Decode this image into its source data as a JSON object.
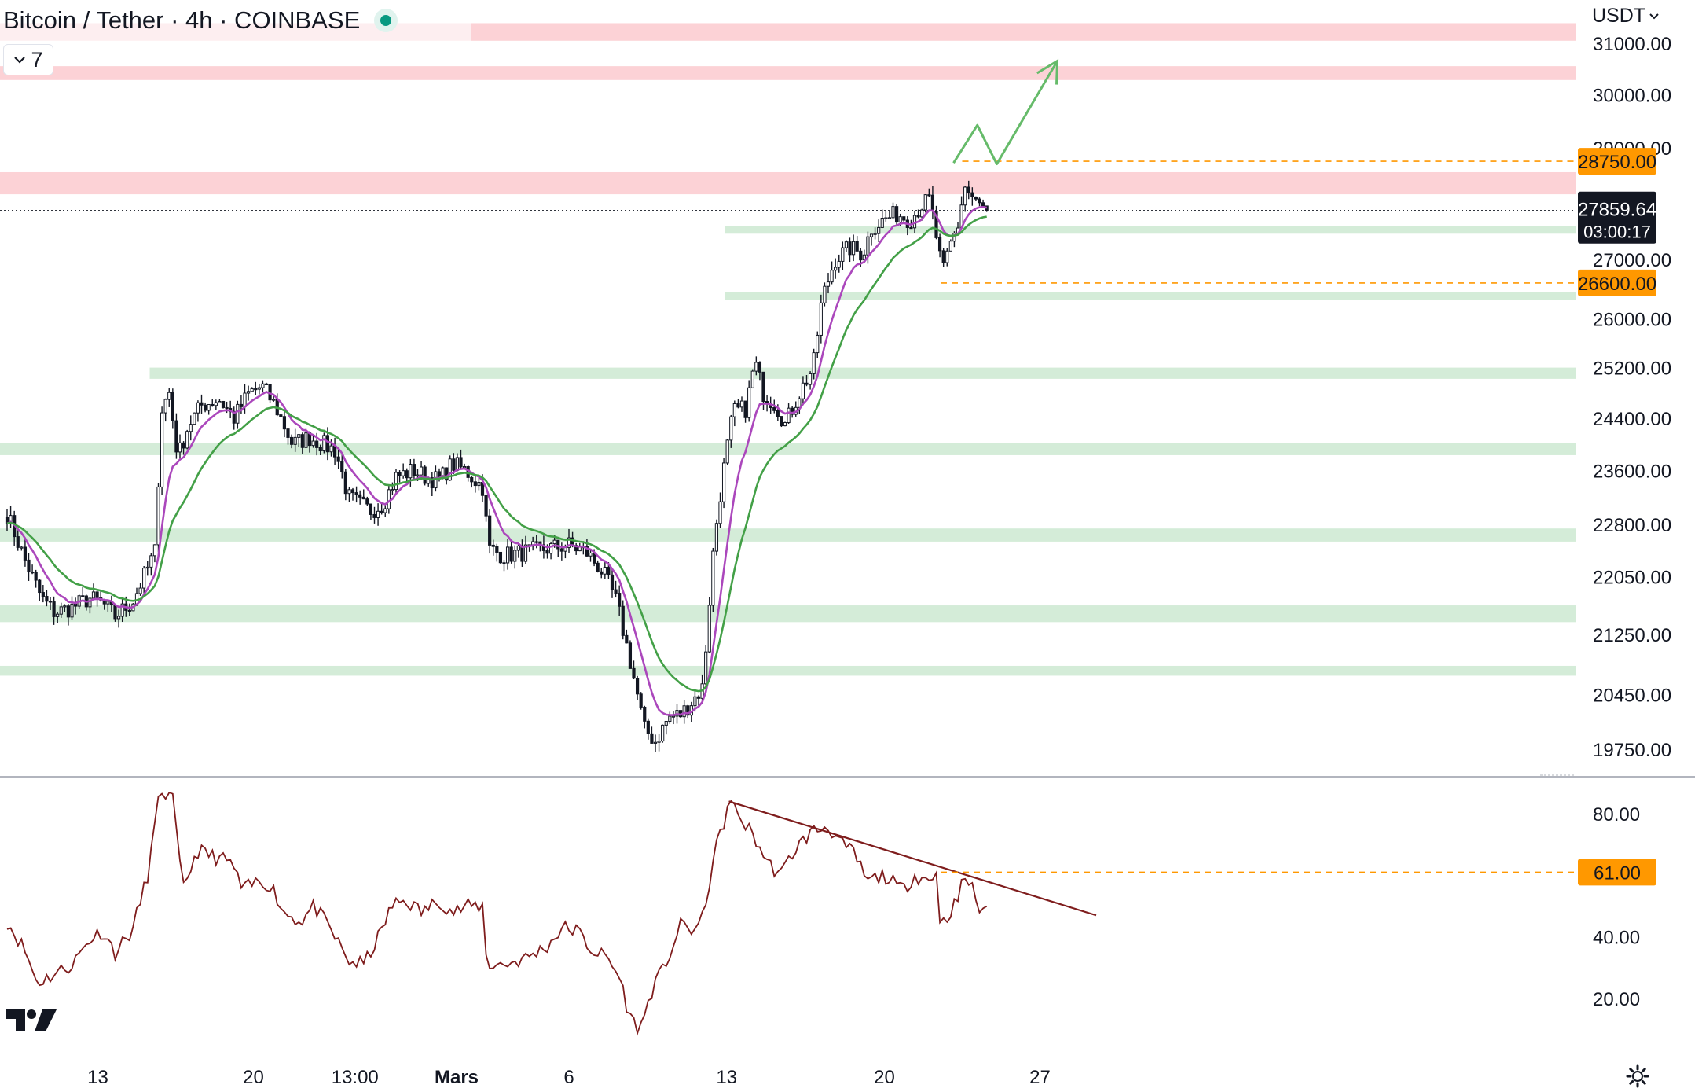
{
  "header": {
    "title": "Bitcoin / Tether · 4h · COINBASE",
    "indicator_count": "7",
    "currency": "USDT",
    "currency_icon": "chevron-down-icon",
    "toggle_icon": "chevron-down-icon",
    "status_color": "#089981"
  },
  "colors": {
    "up": "#089981",
    "candle": "#131722",
    "ema_fast": "#ab47bc",
    "ema_slow": "#43a047",
    "resistance_zone": "#fcd2d6",
    "support_zone": "#d4ecd8",
    "rsi": "#7f1d1d",
    "label_orange": "#ff9800",
    "price_label": "#131722"
  },
  "chart_data": [
    {
      "type": "candlestick",
      "title": "",
      "y_axis": {
        "ticks": [
          "31000.00",
          "30000.00",
          "29000.00",
          "27000.00",
          "26000.00",
          "25200.00",
          "24400.00",
          "23600.00",
          "22800.00",
          "22050.00",
          "21250.00",
          "20450.00",
          "19750.00"
        ],
        "tick_values": [
          31000,
          30000,
          29000,
          27000,
          26000,
          25200,
          24400,
          23600,
          22800,
          22050,
          21250,
          20450,
          19750
        ],
        "scale": "log",
        "range": [
          19450,
          31300
        ],
        "side": "right"
      },
      "x_axis": {
        "ticks": [
          "13",
          "20",
          "13:00",
          "Mars",
          "6",
          "13",
          "20",
          "27"
        ],
        "bold_tick": "Mars"
      },
      "current_price": {
        "value": 27859.64,
        "label": "27859.64",
        "countdown": "03:00:17"
      },
      "price_labels": [
        {
          "value": 28750,
          "label": "28750.00",
          "color": "#ff9800"
        },
        {
          "value": 26600,
          "label": "26600.00",
          "color": "#ff9800"
        }
      ],
      "resistance_zones": [
        {
          "low": 31050,
          "high": 31400
        },
        {
          "low": 30280,
          "high": 30550
        },
        {
          "low": 28150,
          "high": 28550
        }
      ],
      "support_zones": [
        {
          "low": 27450,
          "high": 27580,
          "from_day": 33.2
        },
        {
          "low": 26320,
          "high": 26450,
          "from_day": 33.2
        },
        {
          "low": 25020,
          "high": 25200,
          "from_day": 6.6
        },
        {
          "low": 23830,
          "high": 24010
        },
        {
          "low": 22550,
          "high": 22740
        },
        {
          "low": 21420,
          "high": 21650
        },
        {
          "low": 20700,
          "high": 20830
        }
      ],
      "projection_path": [
        {
          "day": 43.8,
          "price": 28720
        },
        {
          "day": 44.9,
          "price": 29420
        },
        {
          "day": 45.8,
          "price": 28700
        },
        {
          "day": 48.6,
          "price": 30650
        }
      ],
      "candles": {
        "start_day": 0,
        "bars_per_day": 6,
        "last_close": 27859.64,
        "path": [
          [
            0,
            22950
          ],
          [
            0.8,
            22300
          ],
          [
            1.6,
            21750
          ],
          [
            2.2,
            21550
          ],
          [
            3.0,
            21620
          ],
          [
            3.8,
            21750
          ],
          [
            4.4,
            21680
          ],
          [
            5.0,
            21500
          ],
          [
            5.8,
            21700
          ],
          [
            6.4,
            22100
          ],
          [
            6.9,
            22450
          ],
          [
            7.1,
            24500
          ],
          [
            7.5,
            24800
          ],
          [
            7.9,
            23800
          ],
          [
            8.4,
            24300
          ],
          [
            9.0,
            24600
          ],
          [
            9.8,
            24700
          ],
          [
            10.5,
            24400
          ],
          [
            11.2,
            24800
          ],
          [
            11.8,
            24900
          ],
          [
            12.4,
            24600
          ],
          [
            13.2,
            24000
          ],
          [
            14.0,
            24100
          ],
          [
            14.6,
            24000
          ],
          [
            15.2,
            23900
          ],
          [
            15.8,
            23200
          ],
          [
            16.8,
            23000
          ],
          [
            17.4,
            23100
          ],
          [
            18.0,
            23500
          ],
          [
            18.8,
            23600
          ],
          [
            19.4,
            23500
          ],
          [
            20.0,
            23450
          ],
          [
            20.6,
            23700
          ],
          [
            21.2,
            23600
          ],
          [
            22.0,
            23350
          ],
          [
            22.3,
            22450
          ],
          [
            23.0,
            22350
          ],
          [
            24.0,
            22400
          ],
          [
            25.0,
            22450
          ],
          [
            26.0,
            22500
          ],
          [
            26.8,
            22400
          ],
          [
            27.6,
            22100
          ],
          [
            28.2,
            21700
          ],
          [
            28.9,
            20800
          ],
          [
            29.5,
            20000
          ],
          [
            30.0,
            19850
          ],
          [
            30.6,
            20150
          ],
          [
            31.2,
            20200
          ],
          [
            31.8,
            20400
          ],
          [
            32.2,
            20550
          ],
          [
            32.7,
            22500
          ],
          [
            33.1,
            23500
          ],
          [
            33.6,
            24500
          ],
          [
            34.2,
            24550
          ],
          [
            34.6,
            25300
          ],
          [
            35.0,
            24800
          ],
          [
            35.6,
            24600
          ],
          [
            36.0,
            24300
          ],
          [
            36.6,
            24750
          ],
          [
            37.3,
            25200
          ],
          [
            37.7,
            26300
          ],
          [
            38.3,
            27000
          ],
          [
            39.0,
            27200
          ],
          [
            39.6,
            27100
          ],
          [
            40.0,
            27550
          ],
          [
            40.6,
            27700
          ],
          [
            41.2,
            27800
          ],
          [
            41.8,
            27700
          ],
          [
            42.3,
            27950
          ],
          [
            42.7,
            28050
          ],
          [
            43.0,
            27400
          ],
          [
            43.3,
            26750
          ],
          [
            43.6,
            27200
          ],
          [
            44.0,
            27600
          ],
          [
            44.3,
            28300
          ],
          [
            44.8,
            28000
          ],
          [
            45.3,
            27859.64
          ]
        ]
      },
      "ema_fast_length": 9,
      "ema_slow_length": 21
    },
    {
      "type": "line",
      "title": "",
      "y_axis": {
        "ticks": [
          "80.00",
          "40.00",
          "20.00"
        ],
        "tick_values": [
          80,
          40,
          20
        ],
        "range": [
          5,
          93
        ],
        "side": "right"
      },
      "level_label": {
        "value": 61,
        "label": "61.00",
        "color": "#ff9800"
      },
      "trendline": [
        {
          "day": 33.4,
          "value": 84
        },
        {
          "day": 50.4,
          "value": 47
        }
      ],
      "series": [
        {
          "path": [
            [
              0,
              45
            ],
            [
              0.8,
              36
            ],
            [
              1.4,
              25
            ],
            [
              2.2,
              28
            ],
            [
              3.0,
              31
            ],
            [
              3.8,
              39
            ],
            [
              4.4,
              42
            ],
            [
              5.0,
              35
            ],
            [
              5.8,
              42
            ],
            [
              6.5,
              60
            ],
            [
              7.1,
              88
            ],
            [
              7.7,
              84
            ],
            [
              8.1,
              55
            ],
            [
              8.8,
              68
            ],
            [
              9.6,
              66
            ],
            [
              10.4,
              64
            ],
            [
              10.9,
              55
            ],
            [
              11.6,
              58
            ],
            [
              12.2,
              57
            ],
            [
              12.8,
              48
            ],
            [
              13.6,
              45
            ],
            [
              14.2,
              50
            ],
            [
              15.0,
              42
            ],
            [
              15.8,
              32
            ],
            [
              16.5,
              31
            ],
            [
              17.2,
              40
            ],
            [
              17.8,
              50
            ],
            [
              18.4,
              52
            ],
            [
              19.2,
              48
            ],
            [
              20.0,
              52
            ],
            [
              20.6,
              48
            ],
            [
              21.4,
              50
            ],
            [
              22.0,
              50
            ],
            [
              22.2,
              31
            ],
            [
              23.0,
              31
            ],
            [
              24.0,
              33
            ],
            [
              25.0,
              37
            ],
            [
              25.7,
              43
            ],
            [
              26.4,
              42
            ],
            [
              27.0,
              36
            ],
            [
              27.8,
              33
            ],
            [
              28.4,
              26
            ],
            [
              28.8,
              14
            ],
            [
              29.3,
              10
            ],
            [
              29.8,
              22
            ],
            [
              30.4,
              30
            ],
            [
              31.2,
              44
            ],
            [
              31.8,
              42
            ],
            [
              32.2,
              46
            ],
            [
              32.7,
              66
            ],
            [
              33.2,
              78
            ],
            [
              33.4,
              84
            ],
            [
              34.0,
              78
            ],
            [
              34.6,
              72
            ],
            [
              35.2,
              64
            ],
            [
              35.8,
              60
            ],
            [
              36.4,
              68
            ],
            [
              37.2,
              74
            ],
            [
              38.0,
              76
            ],
            [
              38.6,
              70
            ],
            [
              39.2,
              67
            ],
            [
              39.8,
              58
            ],
            [
              40.6,
              60
            ],
            [
              41.4,
              55
            ],
            [
              42.0,
              60
            ],
            [
              42.8,
              58
            ],
            [
              43.0,
              62
            ],
            [
              43.2,
              43
            ],
            [
              43.6,
              48
            ],
            [
              44.0,
              52
            ],
            [
              44.3,
              60
            ],
            [
              44.8,
              54
            ],
            [
              45.0,
              48
            ],
            [
              45.3,
              51
            ]
          ]
        }
      ]
    }
  ]
}
